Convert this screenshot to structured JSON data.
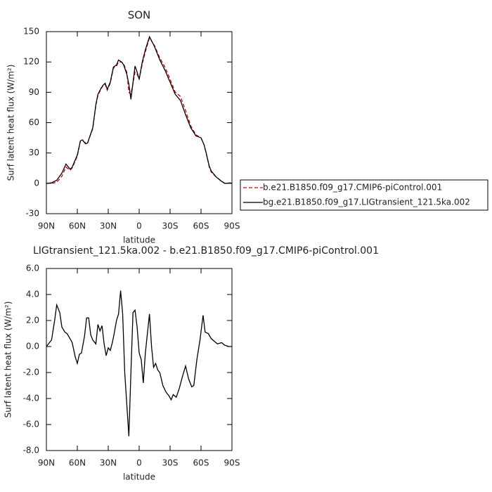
{
  "chart_data": [
    {
      "type": "line",
      "title": "SON",
      "xlabel": "latitude",
      "ylabel": "Surf latent heat flux (W/m²)",
      "x": [
        90,
        85,
        80,
        75,
        71,
        67,
        65,
        60,
        57,
        55,
        52,
        50,
        45,
        42,
        40,
        37,
        35,
        33,
        31,
        28,
        25,
        22,
        20,
        17,
        15,
        12,
        10,
        8,
        4,
        2,
        0,
        -3,
        -6,
        -10,
        -15,
        -20,
        -25,
        -30,
        -35,
        -40,
        -45,
        -50,
        -55,
        -60,
        -63,
        -65,
        -68,
        -70,
        -75,
        -80,
        -83,
        -85,
        -88,
        -90
      ],
      "series": [
        {
          "name": "b.e21.B1850.f09_g17.CMIP6-piControl.001",
          "color": "#cc0000",
          "linestyle": "dashed",
          "values": [
            0,
            0,
            1,
            7,
            16,
            13,
            15,
            27,
            42,
            42,
            40,
            40,
            54,
            77,
            87,
            93,
            97,
            98,
            92,
            99,
            114,
            116,
            120,
            120,
            118,
            110,
            90,
            88,
            110,
            108,
            103,
            118,
            130,
            144,
            136,
            124,
            115,
            103,
            90,
            86,
            72,
            57,
            48,
            45,
            38,
            30,
            16,
            11,
            6,
            2,
            0,
            0,
            0.3,
            0
          ]
        },
        {
          "name": "bg.e21.B1850.f09_g17.LIGtransient_121.5ka.002",
          "color": "#000000",
          "linestyle": "solid",
          "values": [
            0,
            0.5,
            3,
            10,
            19,
            14,
            16,
            28,
            42,
            43,
            39,
            40,
            55,
            78,
            88,
            94,
            97,
            99,
            93,
            100,
            115,
            117,
            122,
            120,
            117,
            108,
            98,
            83,
            116,
            110,
            103,
            120,
            132,
            145,
            135,
            122,
            112,
            100,
            88,
            82,
            68,
            55,
            47,
            45,
            38,
            30,
            17,
            12,
            6,
            2,
            0,
            0,
            0.5,
            0
          ]
        }
      ],
      "xlim": [
        90,
        -90
      ],
      "xticks": [
        {
          "value": 90,
          "label": "90N"
        },
        {
          "value": 60,
          "label": "60N"
        },
        {
          "value": 30,
          "label": "30N"
        },
        0,
        {
          "value": -30,
          "label": "30S"
        },
        {
          "value": -60,
          "label": "60S"
        },
        {
          "value": -90,
          "label": "90S"
        }
      ],
      "ylim": [
        -30,
        150
      ],
      "yticks": [
        -30,
        0,
        30,
        60,
        90,
        120,
        150
      ],
      "legend": "right"
    },
    {
      "type": "line",
      "title": "LIGtransient_121.5ka.002 - b.e21.B1850.f09_g17.CMIP6-piControl.001",
      "xlabel": "latitude",
      "ylabel": "Surf latent heat flux (W/m²)",
      "x": [
        90,
        85,
        82,
        80,
        77,
        75,
        72,
        70,
        67,
        65,
        62,
        60,
        58,
        56,
        53,
        51,
        49,
        47,
        45,
        42,
        40,
        38,
        36,
        34,
        32,
        30,
        28,
        26,
        24,
        22,
        20,
        18,
        16,
        14,
        10,
        8,
        6,
        4,
        2,
        0,
        -2,
        -4,
        -6,
        -8,
        -10,
        -12,
        -14,
        -16,
        -18,
        -20,
        -23,
        -26,
        -29,
        -31,
        -33,
        -36,
        -39,
        -42,
        -45,
        -48,
        -51,
        -53,
        -56,
        -59,
        -62,
        -64,
        -67,
        -70,
        -73,
        -76,
        -80,
        -83,
        -87,
        -90
      ],
      "series": [
        {
          "color": "#000000",
          "linestyle": "solid",
          "values": [
            0,
            0.5,
            2,
            3.2,
            2.6,
            1.5,
            1.1,
            1.0,
            0.6,
            0.3,
            -0.8,
            -1.3,
            -0.6,
            -0.5,
            0.8,
            2.2,
            2.2,
            0.9,
            0.5,
            0.2,
            1.7,
            1.2,
            1.6,
            0.2,
            -0.7,
            -0.1,
            -0.3,
            0.3,
            1.1,
            2.0,
            2.5,
            4.3,
            2.5,
            -2,
            -6.9,
            -2,
            2.6,
            2.8,
            1.5,
            -0.5,
            -1,
            -2.8,
            -0.5,
            1.0,
            2.5,
            0,
            -1.6,
            -1.3,
            -1.8,
            -2.0,
            -3.0,
            -3.5,
            -3.8,
            -4.1,
            -3.7,
            -3.9,
            -3.2,
            -2.3,
            -1.5,
            -2.5,
            -3.1,
            -3.0,
            -1.0,
            0.5,
            2.4,
            1.1,
            1.0,
            0.6,
            0.4,
            0.2,
            0.3,
            0.1,
            0,
            0
          ]
        }
      ],
      "xlim": [
        90,
        -90
      ],
      "xticks": [
        {
          "value": 90,
          "label": "90N"
        },
        {
          "value": 60,
          "label": "60N"
        },
        {
          "value": 30,
          "label": "30N"
        },
        0,
        {
          "value": -30,
          "label": "30S"
        },
        {
          "value": -60,
          "label": "60S"
        },
        {
          "value": -90,
          "label": "90S"
        }
      ],
      "ylim": [
        -8,
        6
      ],
      "yticks": [
        {
          "value": -8,
          "label": "-8.0"
        },
        {
          "value": -6,
          "label": "-6.0"
        },
        {
          "value": -4,
          "label": "-4.0"
        },
        {
          "value": -2,
          "label": "-2.0"
        },
        {
          "value": 0,
          "label": "0.0"
        },
        {
          "value": 2,
          "label": "2.0"
        },
        {
          "value": 4,
          "label": "4.0"
        },
        {
          "value": 6,
          "label": "6.0"
        }
      ]
    }
  ]
}
